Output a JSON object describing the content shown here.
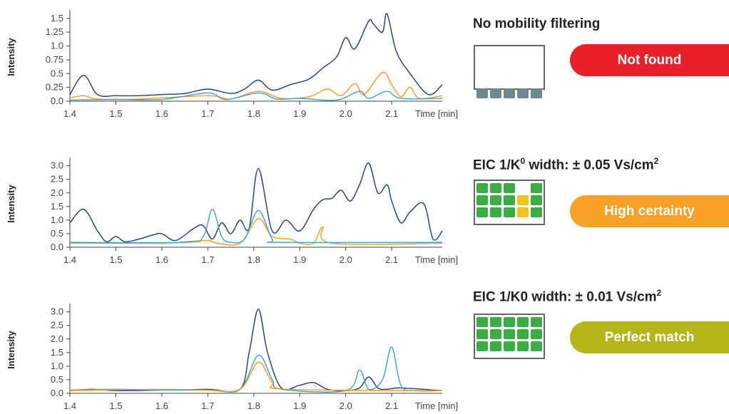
{
  "colors": {
    "dark": "#1f3a7a",
    "light": "#3f9fd0",
    "orange": "#f39c19",
    "red": "#e8202a",
    "amber": "#f7a226",
    "olive": "#b4b61c",
    "green": "#3cad45",
    "yellow": "#f0c31c",
    "slate": "#6e8791"
  },
  "panels": [
    {
      "title": "No mobility filtering",
      "status": "Not found",
      "status_color": "#e8202a",
      "grid_rows": [
        [
          "empty",
          "empty",
          "empty",
          "empty",
          "empty"
        ],
        [
          "slate",
          "slate",
          "slate",
          "slate",
          "slate"
        ]
      ]
    },
    {
      "title_main": "EIC 1/K",
      "title_sup": "0",
      "title_rest": " width: ± 0.05 Vs/cm",
      "title_sup2": "2",
      "status": "High certainty",
      "status_color": "#f7a226",
      "grid_rows": [
        [
          "green",
          "green",
          "green",
          "empty",
          "green"
        ],
        [
          "green",
          "green",
          "green",
          "yellow",
          "green"
        ],
        [
          "green",
          "green",
          "green",
          "yellow",
          "green"
        ]
      ]
    },
    {
      "title_main": "EIC 1/K0 width: ± 0.01 Vs/cm",
      "title_sup": "2",
      "status": "Perfect match",
      "status_color": "#b4b61c",
      "grid_rows": [
        [
          "green",
          "green",
          "green",
          "green",
          "green"
        ],
        [
          "green",
          "green",
          "green",
          "green",
          "green"
        ],
        [
          "green",
          "green",
          "green",
          "green",
          "green"
        ]
      ]
    }
  ],
  "chart_data": [
    {
      "type": "line",
      "xlabel": "Time [min]",
      "ylabel": "Intensity",
      "xlim": [
        1.4,
        2.21
      ],
      "x_ticks": [
        "1.4",
        "1.5",
        "1.6",
        "1.7",
        "1.8",
        "1.9",
        "2.0",
        "2.1"
      ],
      "ylim": [
        0,
        1.6
      ],
      "y_ticks": [
        "0.0",
        "0.25",
        "0.5",
        "0.75",
        "1.0",
        "1.25",
        "1.5"
      ],
      "y_tick_values": [
        0,
        0.25,
        0.5,
        0.75,
        1.0,
        1.25,
        1.5
      ],
      "series": [
        {
          "color": "dark",
          "points": [
            [
              1.4,
              0.12
            ],
            [
              1.43,
              0.47
            ],
            [
              1.46,
              0.12
            ],
            [
              1.5,
              0.1
            ],
            [
              1.55,
              0.1
            ],
            [
              1.6,
              0.12
            ],
            [
              1.65,
              0.14
            ],
            [
              1.7,
              0.22
            ],
            [
              1.75,
              0.14
            ],
            [
              1.78,
              0.22
            ],
            [
              1.81,
              0.38
            ],
            [
              1.84,
              0.2
            ],
            [
              1.88,
              0.3
            ],
            [
              1.92,
              0.4
            ],
            [
              1.95,
              0.6
            ],
            [
              1.98,
              0.8
            ],
            [
              2.0,
              1.15
            ],
            [
              2.02,
              0.95
            ],
            [
              2.05,
              1.45
            ],
            [
              2.06,
              1.4
            ],
            [
              2.08,
              1.25
            ],
            [
              2.09,
              1.58
            ],
            [
              2.11,
              0.9
            ],
            [
              2.14,
              0.5
            ],
            [
              2.18,
              0.12
            ],
            [
              2.21,
              0.3
            ]
          ]
        },
        {
          "color": "orange",
          "points": [
            [
              1.4,
              0.06
            ],
            [
              1.43,
              0.1
            ],
            [
              1.46,
              0.04
            ],
            [
              1.55,
              0.04
            ],
            [
              1.7,
              0.1
            ],
            [
              1.75,
              0.04
            ],
            [
              1.81,
              0.18
            ],
            [
              1.86,
              0.05
            ],
            [
              1.92,
              0.08
            ],
            [
              1.96,
              0.22
            ],
            [
              1.99,
              0.1
            ],
            [
              2.02,
              0.32
            ],
            [
              2.04,
              0.12
            ],
            [
              2.08,
              0.52
            ],
            [
              2.1,
              0.3
            ],
            [
              2.12,
              0.08
            ],
            [
              2.14,
              0.25
            ],
            [
              2.16,
              0.05
            ],
            [
              2.21,
              0.1
            ]
          ]
        },
        {
          "color": "light",
          "points": [
            [
              1.4,
              0.02
            ],
            [
              1.5,
              0.03
            ],
            [
              1.6,
              0.03
            ],
            [
              1.7,
              0.15
            ],
            [
              1.74,
              0.03
            ],
            [
              1.81,
              0.15
            ],
            [
              1.85,
              0.04
            ],
            [
              1.9,
              0.05
            ],
            [
              1.98,
              0.02
            ],
            [
              2.03,
              0.18
            ],
            [
              2.05,
              0.05
            ],
            [
              2.09,
              0.18
            ],
            [
              2.12,
              0.05
            ],
            [
              2.21,
              0.05
            ]
          ]
        }
      ]
    },
    {
      "type": "line",
      "xlabel": "Time [min]",
      "ylabel": "Intensity",
      "xlim": [
        1.4,
        2.21
      ],
      "x_ticks": [
        "1.4",
        "1.5",
        "1.6",
        "1.7",
        "1.8",
        "1.9",
        "2.0",
        "2.1"
      ],
      "ylim": [
        0,
        3.2
      ],
      "y_ticks": [
        "0.0",
        "0.5",
        "1.0",
        "1.5",
        "2.0",
        "2.5",
        "3.0"
      ],
      "y_tick_values": [
        0,
        0.5,
        1.0,
        1.5,
        2.0,
        2.5,
        3.0
      ],
      "series": [
        {
          "color": "dark",
          "points": [
            [
              1.4,
              0.9
            ],
            [
              1.43,
              1.4
            ],
            [
              1.46,
              0.6
            ],
            [
              1.48,
              0.2
            ],
            [
              1.5,
              0.4
            ],
            [
              1.52,
              0.2
            ],
            [
              1.55,
              0.3
            ],
            [
              1.58,
              0.45
            ],
            [
              1.6,
              0.5
            ],
            [
              1.63,
              0.25
            ],
            [
              1.67,
              0.7
            ],
            [
              1.69,
              0.8
            ],
            [
              1.71,
              0.3
            ],
            [
              1.73,
              0.9
            ],
            [
              1.75,
              0.5
            ],
            [
              1.77,
              1.0
            ],
            [
              1.79,
              0.7
            ],
            [
              1.81,
              2.9
            ],
            [
              1.84,
              0.6
            ],
            [
              1.87,
              1.0
            ],
            [
              1.9,
              0.6
            ],
            [
              1.93,
              1.4
            ],
            [
              1.95,
              1.75
            ],
            [
              1.97,
              1.8
            ],
            [
              1.99,
              2.1
            ],
            [
              2.01,
              1.7
            ],
            [
              2.03,
              2.3
            ],
            [
              2.05,
              3.1
            ],
            [
              2.07,
              2.0
            ],
            [
              2.09,
              2.3
            ],
            [
              2.1,
              1.7
            ],
            [
              2.12,
              0.9
            ],
            [
              2.14,
              1.3
            ],
            [
              2.17,
              1.6
            ],
            [
              2.19,
              0.3
            ],
            [
              2.21,
              0.6
            ]
          ]
        },
        {
          "color": "orange",
          "points": [
            [
              1.4,
              0.15
            ],
            [
              1.6,
              0.15
            ],
            [
              1.65,
              0.2
            ],
            [
              1.7,
              0.25
            ],
            [
              1.72,
              0.15
            ],
            [
              1.77,
              0.15
            ],
            [
              1.81,
              1.05
            ],
            [
              1.84,
              0.4
            ],
            [
              1.88,
              0.3
            ],
            [
              1.9,
              0.15
            ],
            [
              1.93,
              0.15
            ],
            [
              1.95,
              0.75
            ],
            [
              1.97,
              0.15
            ],
            [
              2.21,
              0.15
            ]
          ]
        },
        {
          "color": "light",
          "points": [
            [
              1.4,
              0.18
            ],
            [
              1.65,
              0.18
            ],
            [
              1.69,
              0.4
            ],
            [
              1.71,
              1.4
            ],
            [
              1.73,
              0.4
            ],
            [
              1.75,
              0.18
            ],
            [
              1.78,
              0.3
            ],
            [
              1.81,
              1.35
            ],
            [
              1.84,
              0.3
            ],
            [
              1.86,
              0.18
            ],
            [
              2.21,
              0.18
            ]
          ]
        }
      ]
    },
    {
      "type": "line",
      "xlabel": "Time [min]",
      "ylabel": "Intensity",
      "xlim": [
        1.4,
        2.21
      ],
      "x_ticks": [
        "1.4",
        "1.5",
        "1.6",
        "1.7",
        "1.8",
        "1.9",
        "2.0",
        "2.1"
      ],
      "ylim": [
        0,
        3.2
      ],
      "y_ticks": [
        "0.0",
        "0.5",
        "1.0",
        "1.5",
        "2.0",
        "2.5",
        "3.0"
      ],
      "y_tick_values": [
        0,
        0.5,
        1.0,
        1.5,
        2.0,
        2.5,
        3.0
      ],
      "series": [
        {
          "color": "dark",
          "points": [
            [
              1.4,
              0.1
            ],
            [
              1.45,
              0.15
            ],
            [
              1.5,
              0.1
            ],
            [
              1.6,
              0.12
            ],
            [
              1.7,
              0.15
            ],
            [
              1.77,
              0.15
            ],
            [
              1.79,
              1.5
            ],
            [
              1.81,
              3.1
            ],
            [
              1.83,
              1.5
            ],
            [
              1.86,
              0.2
            ],
            [
              1.9,
              0.3
            ],
            [
              1.93,
              0.4
            ],
            [
              1.96,
              0.15
            ],
            [
              2.0,
              0.1
            ],
            [
              2.03,
              0.2
            ],
            [
              2.05,
              0.6
            ],
            [
              2.07,
              0.2
            ],
            [
              2.09,
              0.15
            ],
            [
              2.12,
              0.2
            ],
            [
              2.21,
              0.1
            ]
          ]
        },
        {
          "color": "light",
          "points": [
            [
              1.4,
              0.12
            ],
            [
              1.5,
              0.15
            ],
            [
              1.6,
              0.12
            ],
            [
              1.7,
              0.12
            ],
            [
              1.77,
              0.15
            ],
            [
              1.81,
              1.4
            ],
            [
              1.84,
              0.5
            ],
            [
              1.86,
              0.15
            ],
            [
              2.0,
              0.1
            ],
            [
              2.03,
              0.85
            ],
            [
              2.05,
              0.15
            ],
            [
              2.08,
              0.5
            ],
            [
              2.1,
              1.7
            ],
            [
              2.12,
              0.3
            ],
            [
              2.15,
              0.1
            ],
            [
              2.21,
              0.1
            ]
          ]
        },
        {
          "color": "orange",
          "points": [
            [
              1.4,
              0.1
            ],
            [
              1.6,
              0.15
            ],
            [
              1.7,
              0.12
            ],
            [
              1.77,
              0.15
            ],
            [
              1.81,
              1.15
            ],
            [
              1.84,
              0.4
            ],
            [
              1.87,
              0.15
            ],
            [
              2.21,
              0.1
            ]
          ]
        }
      ]
    }
  ]
}
